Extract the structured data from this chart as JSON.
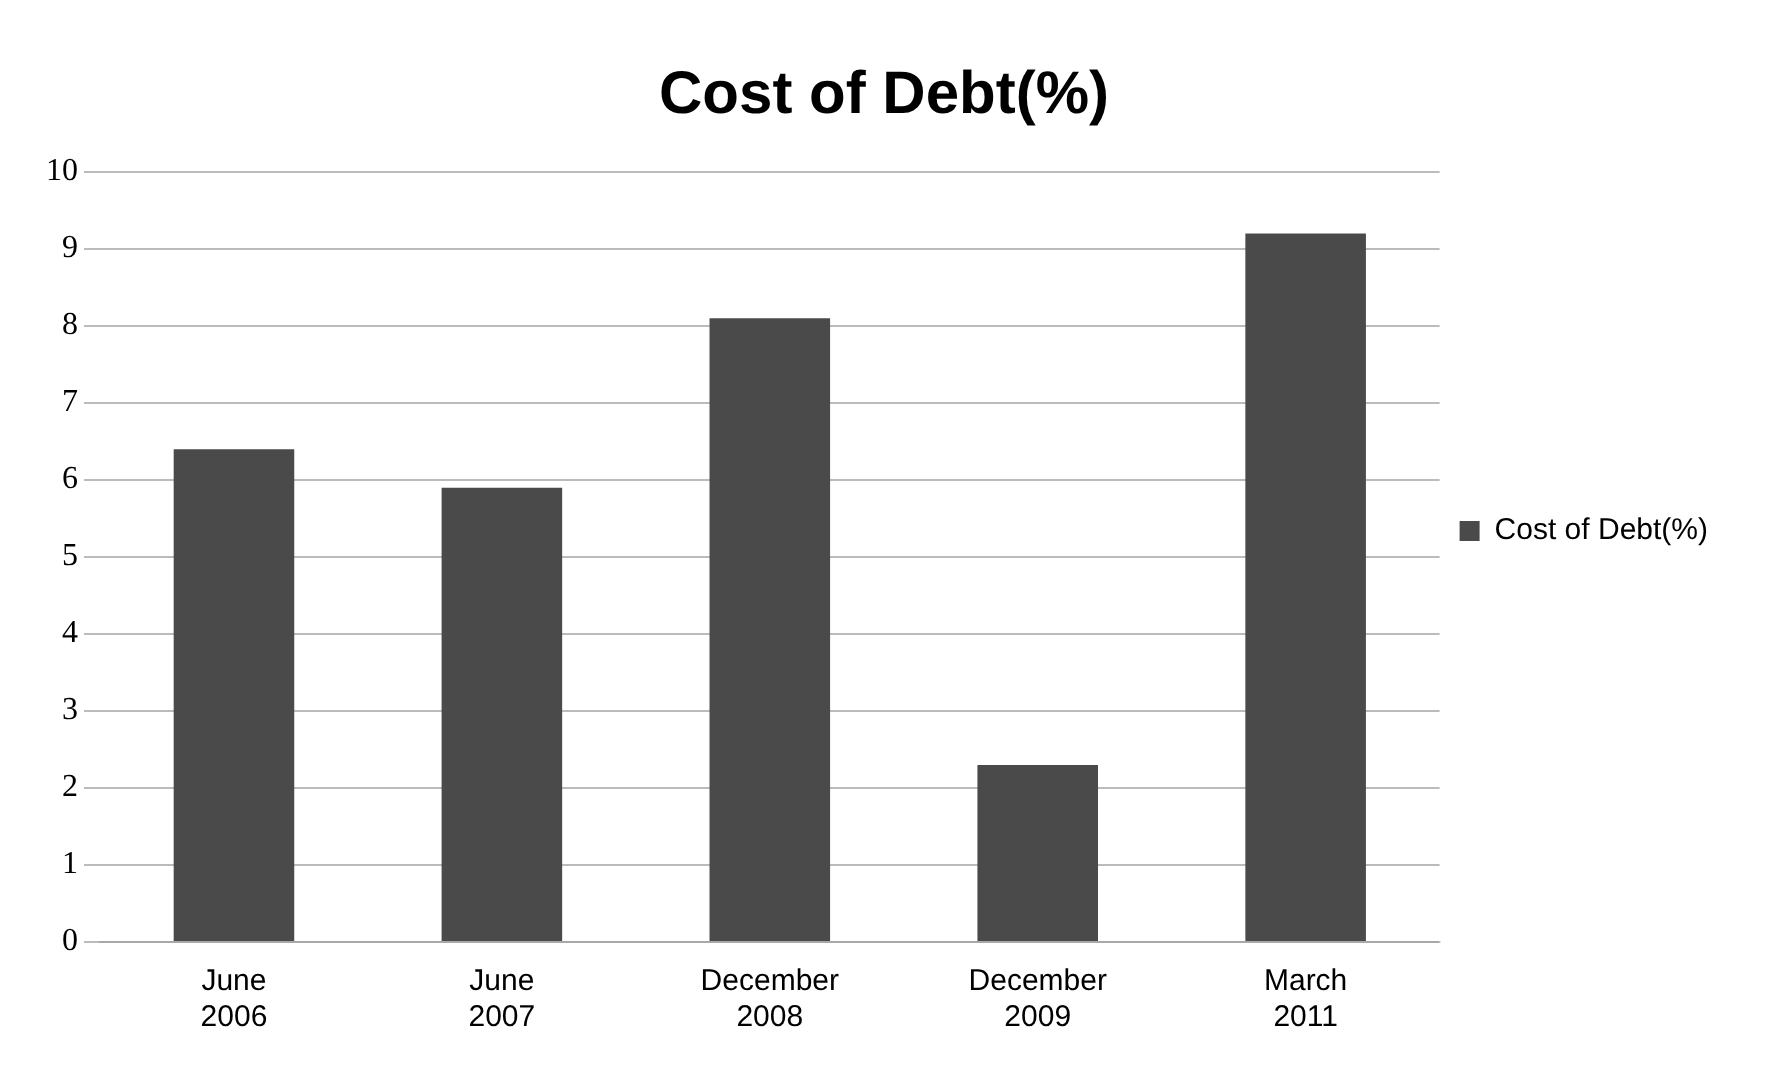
{
  "chart_data": {
    "type": "bar",
    "title": "Cost of Debt(%)",
    "categories": [
      "June 2006",
      "June 2007",
      "December 2008",
      "December 2009",
      "March 2011"
    ],
    "series": [
      {
        "name": "Cost of Debt(%)",
        "color": "#4a4a4a",
        "values": [
          6.4,
          5.9,
          8.1,
          2.3,
          9.2
        ]
      }
    ],
    "ylim": [
      0,
      10
    ],
    "yticks": [
      0,
      1,
      2,
      3,
      4,
      5,
      6,
      7,
      8,
      9,
      10
    ],
    "grid": "y",
    "legend": "right"
  }
}
